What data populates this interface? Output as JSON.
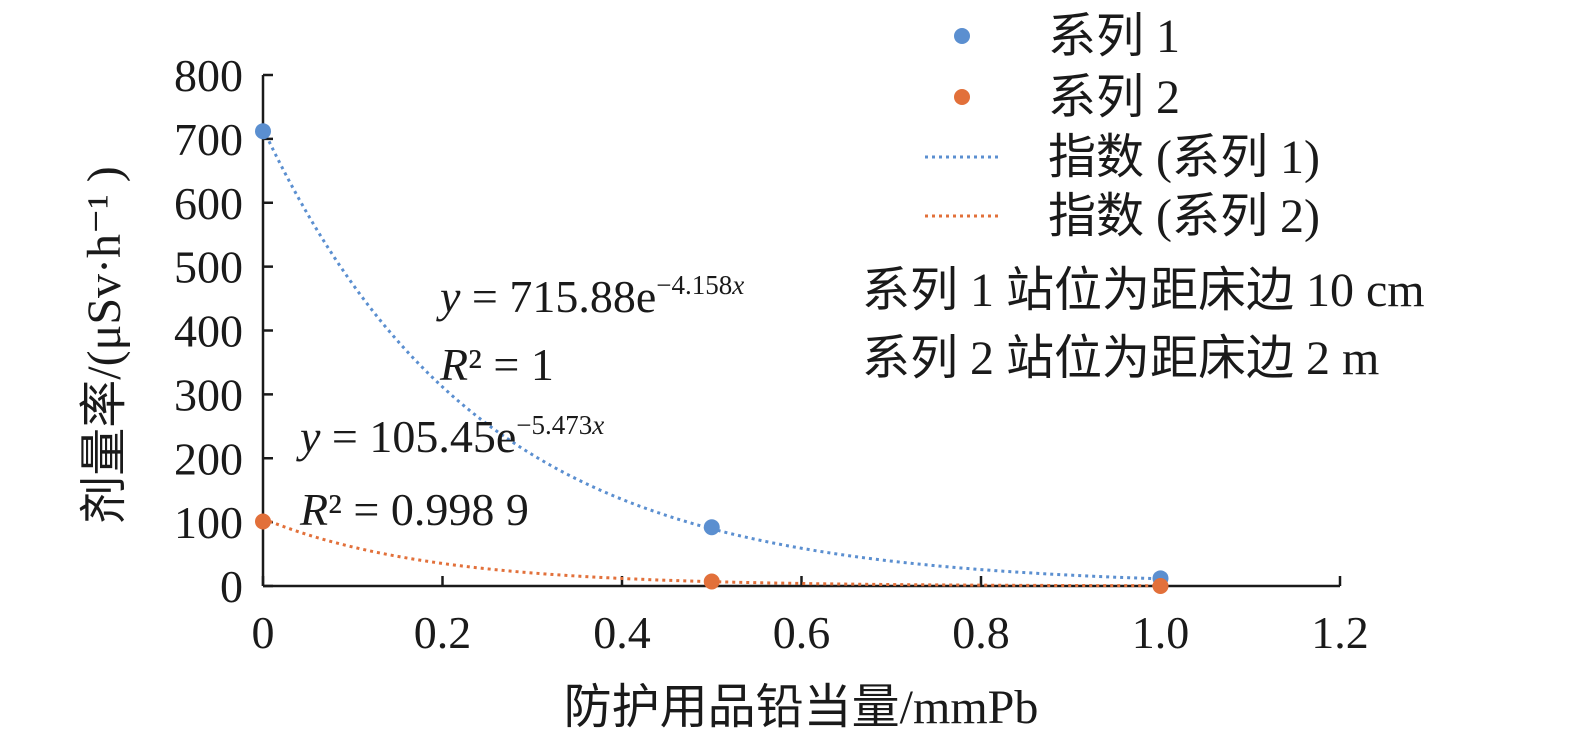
{
  "chart_data": {
    "type": "scatter",
    "xlabel": "防护用品铅当量/mmPb",
    "ylabel": "剂量率/(μSv·h⁻¹ )",
    "xlim": [
      0,
      1.2
    ],
    "ylim": [
      0,
      800
    ],
    "x_ticks": [
      "0",
      "0.2",
      "0.4",
      "0.6",
      "0.8",
      "1.0",
      "1.2"
    ],
    "y_ticks": [
      "0",
      "100",
      "200",
      "300",
      "400",
      "500",
      "600",
      "700",
      "800"
    ],
    "grid": false,
    "legend_position": "top-right",
    "series": [
      {
        "name": "系列 1",
        "color": "#5b8fd0",
        "x": [
          0,
          0.5,
          1.0
        ],
        "y": [
          712,
          92,
          12
        ]
      },
      {
        "name": "系列 2",
        "color": "#e2703a",
        "x": [
          0,
          0.5,
          1.0
        ],
        "y": [
          101,
          7,
          0
        ]
      }
    ],
    "trendlines": [
      {
        "name": "指数 (系列 1)",
        "series": "系列 1",
        "type": "exponential",
        "a": 715.88,
        "b": -4.158,
        "color": "#5b8fd0",
        "equation": {
          "y_var": "y",
          "rhs": " = 715.88e",
          "exponent": "−4.158",
          "exp_var": "x",
          "r_var": "R",
          "r_rest": "² = 1"
        }
      },
      {
        "name": "指数 (系列 2)",
        "series": "系列 2",
        "type": "exponential",
        "a": 105.45,
        "b": -5.473,
        "color": "#e2703a",
        "equation": {
          "y_var": "y",
          "rhs": " = 105.45e",
          "exponent": "−5.473",
          "exp_var": "x",
          "r_var": "R",
          "r_rest": "² = 0.998 9"
        }
      }
    ],
    "notes": [
      "系列 1 站位为距床边 10 cm",
      "系列 2 站位为距床边 2 m"
    ]
  }
}
